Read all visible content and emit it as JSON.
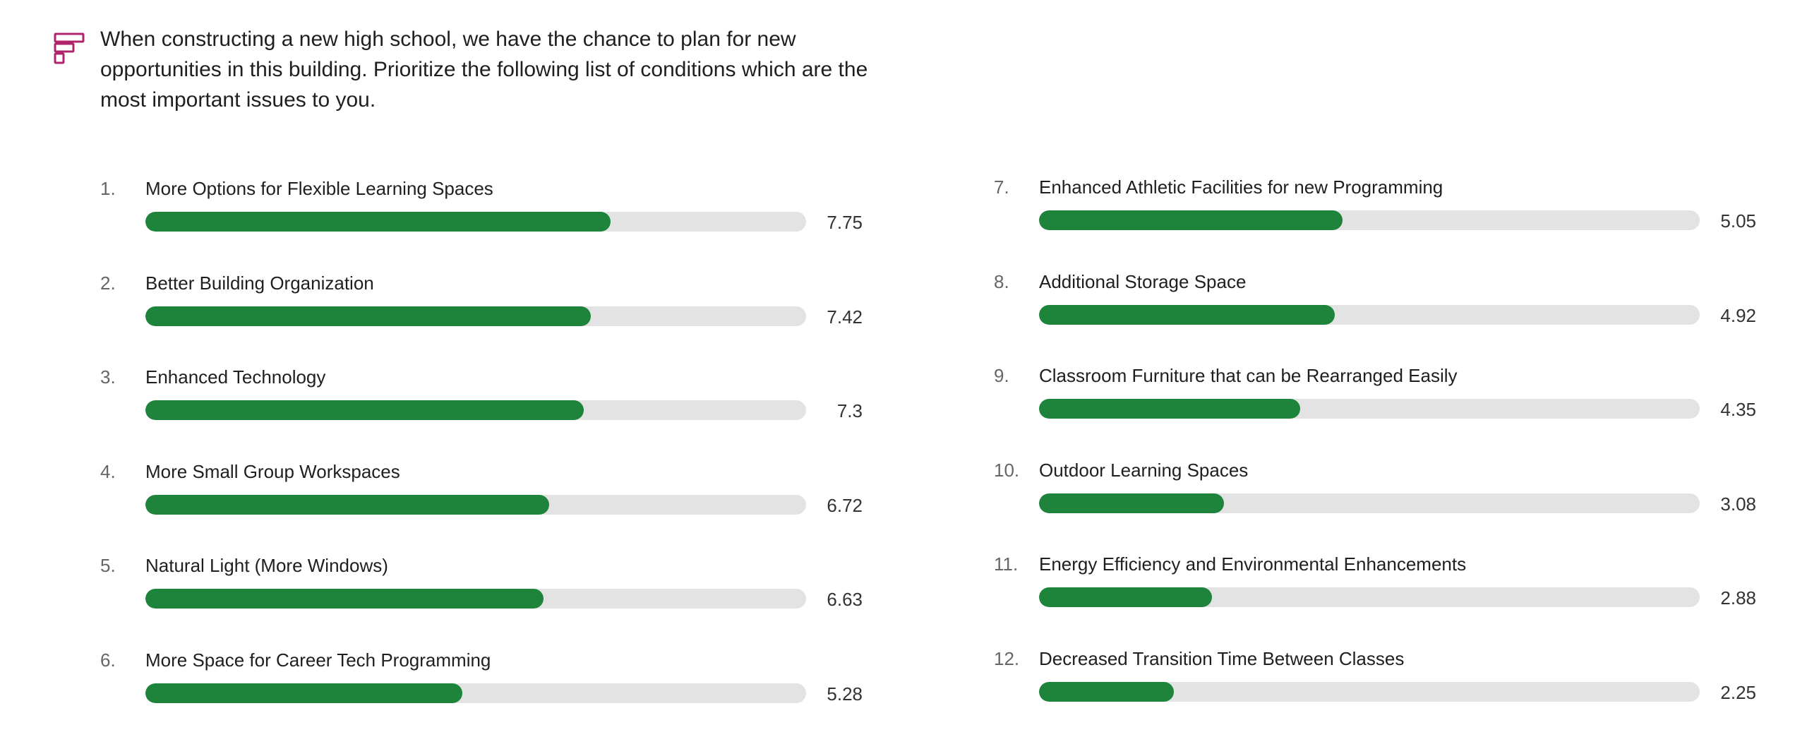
{
  "question": {
    "text": "When constructing a new high school, we have the chance to plan for new opportunities in this building. Prioritize the following list of conditions which are the most important issues to you.",
    "icon": "ranking-icon",
    "icon_color": "#b0246e"
  },
  "colors": {
    "bar_fill": "#1e843c",
    "bar_track": "#e3e3e3"
  },
  "chart_data": {
    "type": "bar",
    "orientation": "horizontal",
    "title": "When constructing a new high school, we have the chance to plan for new opportunities in this building. Prioritize the following list of conditions which are the most important issues to you.",
    "xlim": [
      0,
      11
    ],
    "grid": false,
    "items": [
      {
        "rank": "1.",
        "label": "More Options for Flexible Learning Spaces",
        "value": 7.75,
        "value_label": "7.75"
      },
      {
        "rank": "2.",
        "label": "Better Building Organization",
        "value": 7.42,
        "value_label": "7.42"
      },
      {
        "rank": "3.",
        "label": "Enhanced Technology",
        "value": 7.3,
        "value_label": "7.3"
      },
      {
        "rank": "4.",
        "label": "More Small Group Workspaces",
        "value": 6.72,
        "value_label": "6.72"
      },
      {
        "rank": "5.",
        "label": "Natural Light (More Windows)",
        "value": 6.63,
        "value_label": "6.63"
      },
      {
        "rank": "6.",
        "label": "More Space for Career Tech Programming",
        "value": 5.28,
        "value_label": "5.28"
      },
      {
        "rank": "7.",
        "label": "Enhanced Athletic Facilities for new Programming",
        "value": 5.05,
        "value_label": "5.05"
      },
      {
        "rank": "8.",
        "label": "Additional Storage Space",
        "value": 4.92,
        "value_label": "4.92"
      },
      {
        "rank": "9.",
        "label": "Classroom Furniture that can be Rearranged Easily",
        "value": 4.35,
        "value_label": "4.35"
      },
      {
        "rank": "10.",
        "label": "Outdoor Learning Spaces",
        "value": 3.08,
        "value_label": "3.08"
      },
      {
        "rank": "11.",
        "label": "Energy Efficiency and Environmental Enhancements",
        "value": 2.88,
        "value_label": "2.88"
      },
      {
        "rank": "12.",
        "label": "Decreased Transition Time Between Classes",
        "value": 2.25,
        "value_label": "2.25"
      }
    ]
  }
}
